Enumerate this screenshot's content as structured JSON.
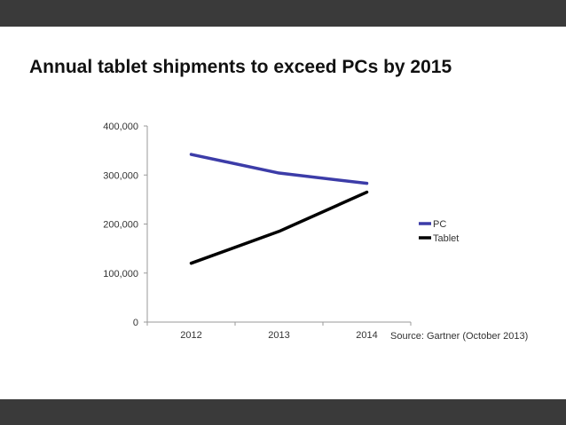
{
  "slide": {
    "title": "Annual tablet shipments to exceed PCs by 2015",
    "source": "Source: Gartner (October 2013)"
  },
  "chart_data": {
    "type": "line",
    "title": "Annual tablet shipments to exceed PCs by 2015",
    "xlabel": "",
    "ylabel": "",
    "categories": [
      "2012",
      "2013",
      "2014"
    ],
    "ylim": [
      0,
      400000
    ],
    "yticks": [
      0,
      100000,
      200000,
      300000,
      400000
    ],
    "ytick_labels": [
      "0",
      "100,000",
      "200,000",
      "300,000",
      "400,000"
    ],
    "grid": false,
    "legend_position": "right",
    "series": [
      {
        "name": "PC",
        "color": "#3c3ca8",
        "values": [
          342000,
          304000,
          283000
        ]
      },
      {
        "name": "Tablet",
        "color": "#000000",
        "values": [
          120000,
          185000,
          265000
        ]
      }
    ]
  }
}
